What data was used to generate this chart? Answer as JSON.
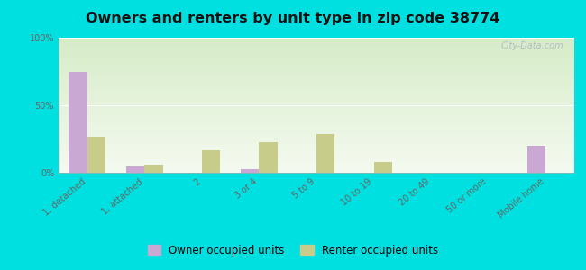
{
  "title": "Owners and renters by unit type in zip code 38774",
  "categories": [
    "1, detached",
    "1, attached",
    "2",
    "3 or 4",
    "5 to 9",
    "10 to 19",
    "20 to 49",
    "50 or more",
    "Mobile home"
  ],
  "owner_values": [
    75,
    5,
    0,
    3,
    0,
    0,
    0,
    0,
    20
  ],
  "renter_values": [
    27,
    6,
    17,
    23,
    29,
    8,
    0,
    0,
    0
  ],
  "owner_color": "#c9a8d4",
  "renter_color": "#c8cc8a",
  "background_outer": "#00e0e0",
  "background_plot_top": "#d6ecc8",
  "background_plot_bottom": "#f5faf0",
  "title_fontsize": 11.5,
  "tick_label_fontsize": 7,
  "legend_fontsize": 8.5,
  "ylim": [
    0,
    100
  ],
  "yticks": [
    0,
    50,
    100
  ],
  "ytick_labels": [
    "0%",
    "50%",
    "100%"
  ],
  "watermark": "City-Data.com",
  "grid_color": "#ffffff"
}
